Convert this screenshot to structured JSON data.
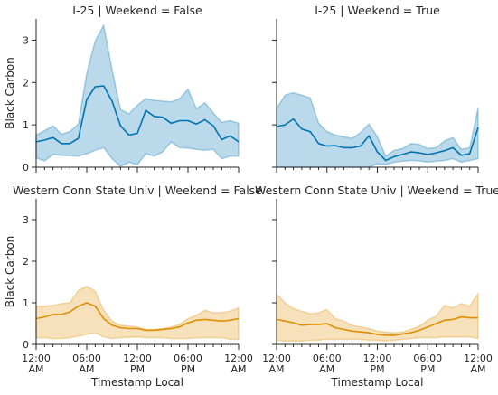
{
  "chart_data": {
    "type": "line",
    "x_hours": [
      0,
      1,
      2,
      3,
      4,
      5,
      6,
      7,
      8,
      9,
      10,
      11,
      12,
      13,
      14,
      15,
      16,
      17,
      18,
      19,
      20,
      21,
      22,
      23,
      24
    ],
    "x_tick_hours": [
      0,
      6,
      12,
      18,
      24
    ],
    "x_tick_labels": [
      [
        "12:00",
        "AM"
      ],
      [
        "06:00",
        "AM"
      ],
      [
        "12:00",
        "PM"
      ],
      [
        "06:00",
        "PM"
      ],
      [
        "12:00",
        "AM"
      ]
    ],
    "xlabel": "Timestamp Local",
    "ylabel": "Black Carbon",
    "ylim": [
      0,
      3.5
    ],
    "y_ticks": [
      0,
      1,
      2,
      3
    ],
    "grid": false,
    "panels": [
      {
        "title": "I-25 | Weekend = False",
        "color": "#0173b2",
        "mean": [
          0.6,
          0.64,
          0.7,
          0.56,
          0.56,
          0.68,
          1.6,
          1.9,
          1.92,
          1.56,
          0.98,
          0.76,
          0.8,
          1.34,
          1.2,
          1.18,
          1.04,
          1.1,
          1.1,
          1.02,
          1.12,
          0.98,
          0.65,
          0.74,
          0.6
        ],
        "lower": [
          0.22,
          0.15,
          0.3,
          0.28,
          0.27,
          0.26,
          0.32,
          0.4,
          0.46,
          0.2,
          0.02,
          0.12,
          0.06,
          0.32,
          0.26,
          0.36,
          0.6,
          0.46,
          0.45,
          0.42,
          0.4,
          0.42,
          0.2,
          0.26,
          0.26
        ],
        "upper": [
          0.76,
          0.86,
          0.98,
          0.78,
          0.84,
          1.02,
          2.22,
          2.98,
          3.35,
          2.3,
          1.36,
          1.26,
          1.46,
          1.62,
          1.58,
          1.56,
          1.54,
          1.62,
          1.84,
          1.38,
          1.52,
          1.28,
          1.06,
          1.1,
          1.04
        ]
      },
      {
        "title": "I-25 | Weekend = True",
        "color": "#0173b2",
        "mean": [
          0.96,
          1.0,
          1.14,
          0.9,
          0.84,
          0.56,
          0.5,
          0.51,
          0.46,
          0.46,
          0.5,
          0.74,
          0.36,
          0.16,
          0.25,
          0.3,
          0.36,
          0.34,
          0.3,
          0.34,
          0.39,
          0.46,
          0.28,
          0.32,
          0.94
        ],
        "lower": [
          0,
          0,
          0,
          0,
          0,
          0,
          0,
          0,
          0,
          0,
          0,
          0,
          0.08,
          0.06,
          0.12,
          0.14,
          0.16,
          0.15,
          0.12,
          0.14,
          0.16,
          0.2,
          0.12,
          0.16,
          0.2
        ],
        "upper": [
          1.38,
          1.7,
          1.76,
          1.7,
          1.64,
          1.04,
          0.84,
          0.76,
          0.72,
          0.68,
          0.82,
          1.02,
          0.72,
          0.26,
          0.4,
          0.44,
          0.56,
          0.54,
          0.44,
          0.46,
          0.62,
          0.7,
          0.42,
          0.46,
          1.4
        ]
      },
      {
        "title": "Western Conn State Univ | Weekend = False",
        "color": "#de8f05",
        "mean": [
          0.62,
          0.66,
          0.72,
          0.72,
          0.78,
          0.92,
          1.0,
          0.92,
          0.62,
          0.46,
          0.4,
          0.38,
          0.38,
          0.34,
          0.34,
          0.36,
          0.38,
          0.42,
          0.52,
          0.58,
          0.6,
          0.58,
          0.56,
          0.58,
          0.62
        ],
        "lower": [
          0.16,
          0.16,
          0.14,
          0.14,
          0.16,
          0.2,
          0.24,
          0.28,
          0.18,
          0.14,
          0.16,
          0.17,
          0.18,
          0.16,
          0.16,
          0.16,
          0.14,
          0.14,
          0.14,
          0.16,
          0.16,
          0.16,
          0.16,
          0.12,
          0.12
        ],
        "upper": [
          0.92,
          0.92,
          0.94,
          0.98,
          1.0,
          1.3,
          1.4,
          1.28,
          0.82,
          0.56,
          0.46,
          0.44,
          0.42,
          0.36,
          0.36,
          0.38,
          0.42,
          0.48,
          0.62,
          0.7,
          0.82,
          0.76,
          0.76,
          0.8,
          0.88
        ]
      },
      {
        "title": "Western Conn State Univ | Weekend = True",
        "color": "#de8f05",
        "mean": [
          0.6,
          0.56,
          0.52,
          0.46,
          0.48,
          0.48,
          0.5,
          0.4,
          0.36,
          0.32,
          0.3,
          0.28,
          0.24,
          0.22,
          0.22,
          0.25,
          0.28,
          0.34,
          0.42,
          0.5,
          0.58,
          0.6,
          0.66,
          0.64,
          0.64
        ],
        "lower": [
          0.1,
          0.08,
          0.08,
          0.08,
          0.1,
          0.1,
          0.12,
          0.12,
          0.12,
          0.12,
          0.12,
          0.1,
          0.1,
          0.08,
          0.1,
          0.12,
          0.14,
          0.16,
          0.16,
          0.16,
          0.18,
          0.18,
          0.18,
          0.18,
          0.14
        ],
        "upper": [
          1.2,
          1.0,
          0.86,
          0.8,
          0.74,
          0.76,
          0.84,
          0.62,
          0.56,
          0.46,
          0.42,
          0.38,
          0.32,
          0.3,
          0.28,
          0.3,
          0.36,
          0.44,
          0.58,
          0.68,
          0.94,
          0.88,
          0.98,
          0.92,
          1.22
        ]
      }
    ]
  }
}
